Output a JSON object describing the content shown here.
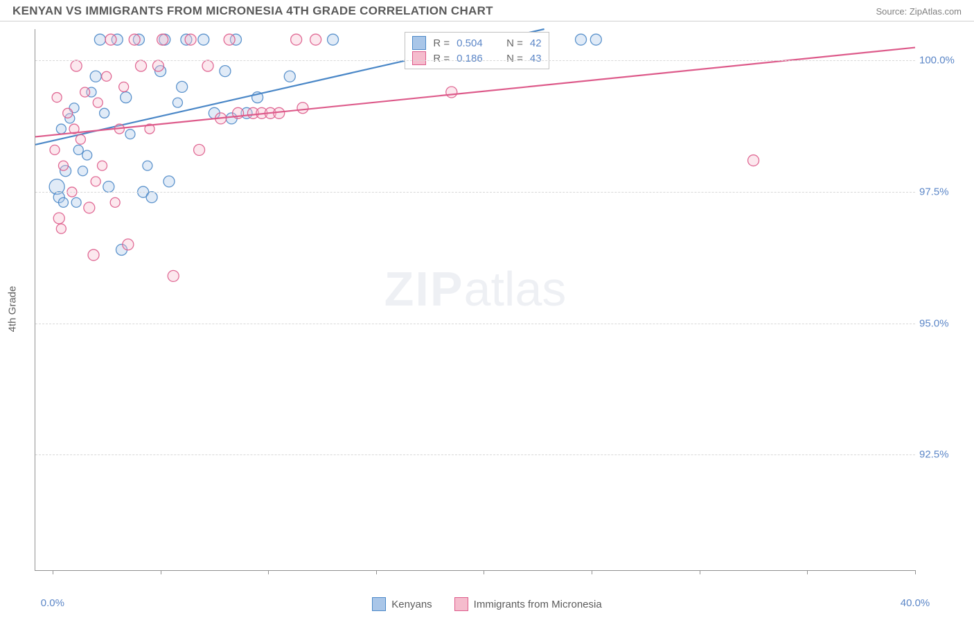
{
  "header": {
    "title": "KENYAN VS IMMIGRANTS FROM MICRONESIA 4TH GRADE CORRELATION CHART",
    "source": "Source: ZipAtlas.com"
  },
  "axes": {
    "y_title": "4th Grade",
    "y_min": 90.3,
    "y_max": 100.6,
    "y_ticks": [
      92.5,
      95.0,
      97.5,
      100.0
    ],
    "y_tick_labels": [
      "92.5%",
      "95.0%",
      "97.5%",
      "100.0%"
    ],
    "x_min": -0.8,
    "x_max": 40.0,
    "x_ticks": [
      0,
      5,
      10,
      15,
      20,
      25,
      30,
      35,
      40
    ],
    "x_tick_labels": {
      "0": "0.0%",
      "40": "40.0%"
    }
  },
  "series": [
    {
      "name": "Kenyans",
      "color_fill": "#a9c6e8",
      "color_stroke": "#4a87c7",
      "R": "0.504",
      "N": "42",
      "trend_line": {
        "x1": -0.8,
        "y1": 98.4,
        "x2": 22.8,
        "y2": 100.6
      },
      "points": [
        {
          "x": 0.2,
          "y": 97.6,
          "r": 11
        },
        {
          "x": 0.4,
          "y": 98.7,
          "r": 7
        },
        {
          "x": 0.6,
          "y": 97.9,
          "r": 8
        },
        {
          "x": 0.3,
          "y": 97.4,
          "r": 8
        },
        {
          "x": 0.8,
          "y": 98.9,
          "r": 7
        },
        {
          "x": 1.0,
          "y": 99.1,
          "r": 7
        },
        {
          "x": 1.2,
          "y": 98.3,
          "r": 7
        },
        {
          "x": 1.4,
          "y": 97.9,
          "r": 7
        },
        {
          "x": 1.6,
          "y": 98.2,
          "r": 7
        },
        {
          "x": 1.8,
          "y": 99.4,
          "r": 7
        },
        {
          "x": 2.0,
          "y": 99.7,
          "r": 8
        },
        {
          "x": 2.2,
          "y": 100.4,
          "r": 8
        },
        {
          "x": 2.4,
          "y": 99.0,
          "r": 7
        },
        {
          "x": 2.6,
          "y": 97.6,
          "r": 8
        },
        {
          "x": 3.0,
          "y": 100.4,
          "r": 8
        },
        {
          "x": 3.2,
          "y": 96.4,
          "r": 8
        },
        {
          "x": 3.4,
          "y": 99.3,
          "r": 8
        },
        {
          "x": 3.6,
          "y": 98.6,
          "r": 7
        },
        {
          "x": 4.0,
          "y": 100.4,
          "r": 8
        },
        {
          "x": 4.2,
          "y": 97.5,
          "r": 8
        },
        {
          "x": 4.4,
          "y": 98.0,
          "r": 7
        },
        {
          "x": 4.6,
          "y": 97.4,
          "r": 8
        },
        {
          "x": 5.0,
          "y": 99.8,
          "r": 8
        },
        {
          "x": 5.2,
          "y": 100.4,
          "r": 8
        },
        {
          "x": 5.4,
          "y": 97.7,
          "r": 8
        },
        {
          "x": 5.8,
          "y": 99.2,
          "r": 7
        },
        {
          "x": 6.0,
          "y": 99.5,
          "r": 8
        },
        {
          "x": 6.2,
          "y": 100.4,
          "r": 8
        },
        {
          "x": 7.0,
          "y": 100.4,
          "r": 8
        },
        {
          "x": 7.5,
          "y": 99.0,
          "r": 8
        },
        {
          "x": 8.0,
          "y": 99.8,
          "r": 8
        },
        {
          "x": 8.3,
          "y": 98.9,
          "r": 8
        },
        {
          "x": 8.5,
          "y": 100.4,
          "r": 8
        },
        {
          "x": 9.0,
          "y": 99.0,
          "r": 8
        },
        {
          "x": 9.5,
          "y": 99.3,
          "r": 8
        },
        {
          "x": 11.0,
          "y": 99.7,
          "r": 8
        },
        {
          "x": 13.0,
          "y": 100.4,
          "r": 8
        },
        {
          "x": 19.5,
          "y": 100.4,
          "r": 8
        },
        {
          "x": 24.5,
          "y": 100.4,
          "r": 8
        },
        {
          "x": 25.2,
          "y": 100.4,
          "r": 8
        },
        {
          "x": 0.5,
          "y": 97.3,
          "r": 7
        },
        {
          "x": 1.1,
          "y": 97.3,
          "r": 7
        }
      ]
    },
    {
      "name": "Immigants from Micronesia",
      "label": "Immigrants from Micronesia",
      "color_fill": "#f5bccd",
      "color_stroke": "#dd5a8a",
      "R": "0.186",
      "N": "43",
      "trend_line": {
        "x1": -0.8,
        "y1": 98.55,
        "x2": 40.0,
        "y2": 100.25
      },
      "points": [
        {
          "x": 0.1,
          "y": 98.3,
          "r": 7
        },
        {
          "x": 0.3,
          "y": 97.0,
          "r": 8
        },
        {
          "x": 0.5,
          "y": 98.0,
          "r": 7
        },
        {
          "x": 0.7,
          "y": 99.0,
          "r": 7
        },
        {
          "x": 0.9,
          "y": 97.5,
          "r": 7
        },
        {
          "x": 1.1,
          "y": 99.9,
          "r": 8
        },
        {
          "x": 1.3,
          "y": 98.5,
          "r": 7
        },
        {
          "x": 1.5,
          "y": 99.4,
          "r": 7
        },
        {
          "x": 1.7,
          "y": 97.2,
          "r": 8
        },
        {
          "x": 1.9,
          "y": 96.3,
          "r": 8
        },
        {
          "x": 2.1,
          "y": 99.2,
          "r": 7
        },
        {
          "x": 2.3,
          "y": 98.0,
          "r": 7
        },
        {
          "x": 2.5,
          "y": 99.7,
          "r": 7
        },
        {
          "x": 2.7,
          "y": 100.4,
          "r": 8
        },
        {
          "x": 2.9,
          "y": 97.3,
          "r": 7
        },
        {
          "x": 3.1,
          "y": 98.7,
          "r": 7
        },
        {
          "x": 3.3,
          "y": 99.5,
          "r": 7
        },
        {
          "x": 3.5,
          "y": 96.5,
          "r": 8
        },
        {
          "x": 3.8,
          "y": 100.4,
          "r": 8
        },
        {
          "x": 4.1,
          "y": 99.9,
          "r": 8
        },
        {
          "x": 4.5,
          "y": 98.7,
          "r": 7
        },
        {
          "x": 4.9,
          "y": 99.9,
          "r": 8
        },
        {
          "x": 5.1,
          "y": 100.4,
          "r": 8
        },
        {
          "x": 5.6,
          "y": 95.9,
          "r": 8
        },
        {
          "x": 6.4,
          "y": 100.4,
          "r": 8
        },
        {
          "x": 6.8,
          "y": 98.3,
          "r": 8
        },
        {
          "x": 7.2,
          "y": 99.9,
          "r": 8
        },
        {
          "x": 7.8,
          "y": 98.9,
          "r": 8
        },
        {
          "x": 8.2,
          "y": 100.4,
          "r": 8
        },
        {
          "x": 8.6,
          "y": 99.0,
          "r": 8
        },
        {
          "x": 9.3,
          "y": 99.0,
          "r": 8
        },
        {
          "x": 9.7,
          "y": 99.0,
          "r": 8
        },
        {
          "x": 10.1,
          "y": 99.0,
          "r": 8
        },
        {
          "x": 10.5,
          "y": 99.0,
          "r": 8
        },
        {
          "x": 11.3,
          "y": 100.4,
          "r": 8
        },
        {
          "x": 11.6,
          "y": 99.1,
          "r": 8
        },
        {
          "x": 12.2,
          "y": 100.4,
          "r": 8
        },
        {
          "x": 18.5,
          "y": 99.4,
          "r": 8
        },
        {
          "x": 32.5,
          "y": 98.1,
          "r": 8
        },
        {
          "x": 0.4,
          "y": 96.8,
          "r": 7
        },
        {
          "x": 1.0,
          "y": 98.7,
          "r": 7
        },
        {
          "x": 2.0,
          "y": 97.7,
          "r": 7
        },
        {
          "x": 0.2,
          "y": 99.3,
          "r": 7
        }
      ]
    }
  ],
  "legend_bottom": [
    {
      "swatch_fill": "#a9c6e8",
      "swatch_stroke": "#4a87c7",
      "label": "Kenyans"
    },
    {
      "swatch_fill": "#f5bccd",
      "swatch_stroke": "#dd5a8a",
      "label": "Immigrants from Micronesia"
    }
  ],
  "watermark": {
    "bold": "ZIP",
    "rest": "atlas"
  },
  "styling": {
    "grid_color": "#d8d8d8",
    "axis_color": "#909090",
    "tick_label_color": "#5b86c7",
    "title_color": "#5a5a5a",
    "point_default_radius": 8
  }
}
